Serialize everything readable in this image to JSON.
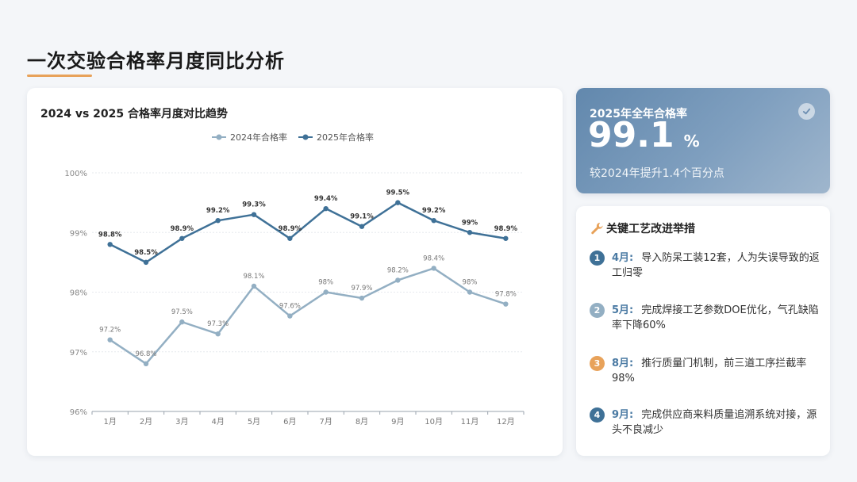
{
  "page": {
    "title": "一次交验合格率月度同比分析"
  },
  "colors": {
    "accent_underline": "#e8a25a",
    "series_2024": "#93afc3",
    "series_2025": "#3f7197",
    "kpi_gradient_start": "#6288ad",
    "badge_1": "#3f7197",
    "badge_2": "#93afc3",
    "badge_3": "#e8a25a",
    "badge_4": "#3f7197"
  },
  "chart_data": {
    "type": "line",
    "title": "2024 vs 2025 合格率月度对比趋势",
    "categories": [
      "1月",
      "2月",
      "3月",
      "4月",
      "5月",
      "6月",
      "7月",
      "8月",
      "9月",
      "10月",
      "11月",
      "12月"
    ],
    "series": [
      {
        "name": "2024年合格率",
        "values": [
          97.2,
          96.8,
          97.5,
          97.3,
          98.1,
          97.6,
          98.0,
          97.9,
          98.2,
          98.4,
          98.0,
          97.8
        ],
        "labels": [
          "97.2%",
          "96.8%",
          "97.5%",
          "97.3%",
          "98.1%",
          "97.6%",
          "98%",
          "97.9%",
          "98.2%",
          "98.4%",
          "98%",
          "97.8%"
        ]
      },
      {
        "name": "2025年合格率",
        "values": [
          98.8,
          98.5,
          98.9,
          99.2,
          99.3,
          98.9,
          99.4,
          99.1,
          99.5,
          99.2,
          99.0,
          98.9
        ],
        "labels": [
          "98.8%",
          "98.5%",
          "98.9%",
          "99.2%",
          "99.3%",
          "98.9%",
          "99.4%",
          "99.1%",
          "99.5%",
          "99.2%",
          "99%",
          "98.9%"
        ]
      }
    ],
    "ylim": [
      96,
      100
    ],
    "yticks": [
      96,
      97,
      98,
      99,
      100
    ],
    "ytick_labels": [
      "96%",
      "97%",
      "98%",
      "99%",
      "100%"
    ],
    "grid": true,
    "legend": "top-center"
  },
  "kpi": {
    "label": "2025年全年合格率",
    "value": "99.1",
    "unit": "%",
    "sub": "较2024年提升1.4个百分点",
    "icon": "check-circle-icon"
  },
  "improvements": {
    "title": "关键工艺改进举措",
    "icon": "wrench-icon",
    "items": [
      {
        "num": "1",
        "month": "4月:",
        "text": "导入防呆工装12套，人为失误导致的返工归零"
      },
      {
        "num": "2",
        "month": "5月:",
        "text": "完成焊接工艺参数DOE优化，气孔缺陷率下降60%"
      },
      {
        "num": "3",
        "month": "8月:",
        "text": "推行质量门机制，前三道工序拦截率98%"
      },
      {
        "num": "4",
        "month": "9月:",
        "text": "完成供应商来料质量追溯系统对接，源头不良减少"
      }
    ]
  }
}
